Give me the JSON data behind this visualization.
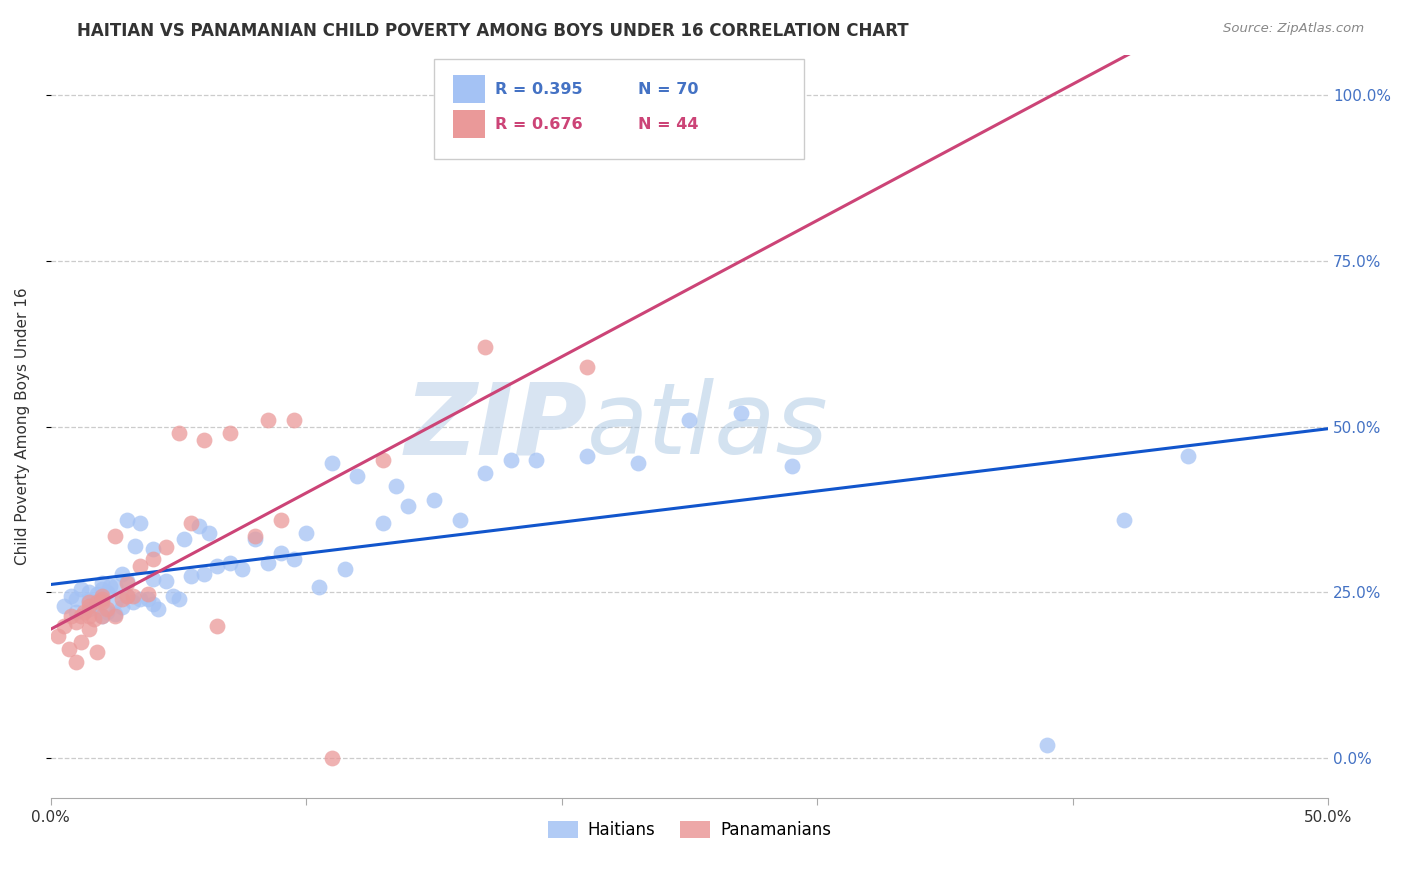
{
  "title": "HAITIAN VS PANAMANIAN CHILD POVERTY AMONG BOYS UNDER 16 CORRELATION CHART",
  "source": "Source: ZipAtlas.com",
  "ylabel": "Child Poverty Among Boys Under 16",
  "xlim": [
    0.0,
    0.5
  ],
  "ylim": [
    -0.06,
    1.06
  ],
  "yticks": [
    0.0,
    0.25,
    0.5,
    0.75,
    1.0
  ],
  "ytick_labels": [
    "0.0%",
    "25.0%",
    "50.0%",
    "75.0%",
    "100.0%"
  ],
  "xticks": [
    0.0,
    0.1,
    0.2,
    0.3,
    0.4,
    0.5
  ],
  "xtick_labels": [
    "0.0%",
    "",
    "",
    "",
    "",
    "50.0%"
  ],
  "watermark_zip": "ZIP",
  "watermark_atlas": "atlas",
  "blue_color": "#a4c2f4",
  "pink_color": "#ea9999",
  "blue_line_color": "#1155cc",
  "pink_line_color": "#cc4477",
  "haitians_x": [
    0.005,
    0.008,
    0.01,
    0.01,
    0.012,
    0.015,
    0.015,
    0.015,
    0.018,
    0.018,
    0.02,
    0.02,
    0.02,
    0.02,
    0.022,
    0.022,
    0.023,
    0.025,
    0.025,
    0.025,
    0.028,
    0.028,
    0.03,
    0.03,
    0.03,
    0.032,
    0.033,
    0.035,
    0.035,
    0.038,
    0.04,
    0.04,
    0.04,
    0.042,
    0.045,
    0.048,
    0.05,
    0.052,
    0.055,
    0.058,
    0.06,
    0.062,
    0.065,
    0.07,
    0.075,
    0.08,
    0.085,
    0.09,
    0.095,
    0.1,
    0.105,
    0.11,
    0.115,
    0.12,
    0.13,
    0.135,
    0.14,
    0.15,
    0.16,
    0.17,
    0.18,
    0.19,
    0.21,
    0.23,
    0.25,
    0.27,
    0.29,
    0.39,
    0.42,
    0.445
  ],
  "haitians_y": [
    0.23,
    0.245,
    0.22,
    0.24,
    0.255,
    0.225,
    0.238,
    0.25,
    0.23,
    0.248,
    0.215,
    0.24,
    0.255,
    0.265,
    0.22,
    0.25,
    0.26,
    0.218,
    0.235,
    0.26,
    0.228,
    0.278,
    0.245,
    0.268,
    0.36,
    0.235,
    0.32,
    0.24,
    0.355,
    0.24,
    0.232,
    0.27,
    0.315,
    0.225,
    0.268,
    0.245,
    0.24,
    0.33,
    0.275,
    0.35,
    0.278,
    0.34,
    0.29,
    0.295,
    0.285,
    0.33,
    0.295,
    0.31,
    0.3,
    0.34,
    0.258,
    0.445,
    0.285,
    0.425,
    0.355,
    0.41,
    0.38,
    0.39,
    0.36,
    0.43,
    0.45,
    0.45,
    0.455,
    0.445,
    0.51,
    0.52,
    0.44,
    0.02,
    0.36,
    0.455
  ],
  "panamanians_x": [
    0.003,
    0.005,
    0.007,
    0.008,
    0.01,
    0.01,
    0.012,
    0.012,
    0.013,
    0.015,
    0.015,
    0.015,
    0.015,
    0.017,
    0.018,
    0.018,
    0.02,
    0.02,
    0.02,
    0.02,
    0.022,
    0.025,
    0.025,
    0.028,
    0.03,
    0.03,
    0.032,
    0.035,
    0.038,
    0.04,
    0.045,
    0.05,
    0.055,
    0.06,
    0.065,
    0.07,
    0.08,
    0.085,
    0.09,
    0.095,
    0.11,
    0.13,
    0.17,
    0.21
  ],
  "panamanians_y": [
    0.185,
    0.2,
    0.165,
    0.215,
    0.145,
    0.205,
    0.175,
    0.215,
    0.22,
    0.195,
    0.215,
    0.23,
    0.235,
    0.21,
    0.16,
    0.235,
    0.215,
    0.24,
    0.245,
    0.235,
    0.225,
    0.215,
    0.335,
    0.24,
    0.245,
    0.265,
    0.245,
    0.29,
    0.248,
    0.3,
    0.318,
    0.49,
    0.355,
    0.48,
    0.2,
    0.49,
    0.335,
    0.51,
    0.36,
    0.51,
    0.0,
    0.45,
    0.62,
    0.59
  ]
}
